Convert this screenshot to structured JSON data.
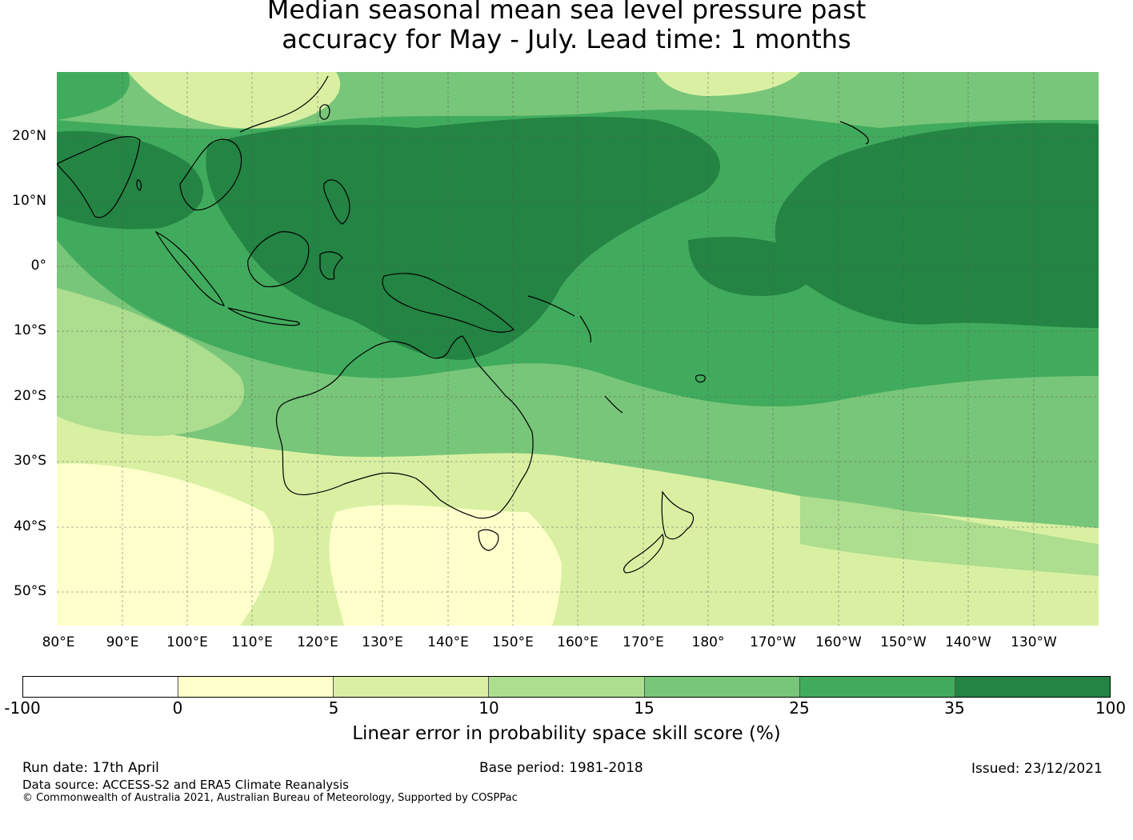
{
  "title": {
    "line1": "Median seasonal mean sea level pressure past",
    "line2": "accuracy for May - July. Lead time: 1 months"
  },
  "map": {
    "lat_labels": [
      "20°N",
      "10°N",
      "0°",
      "10°S",
      "20°S",
      "30°S",
      "40°S",
      "50°S"
    ],
    "lon_labels": [
      "80°E",
      "90°E",
      "100°E",
      "110°E",
      "120°E",
      "130°E",
      "140°E",
      "150°E",
      "160°E",
      "170°E",
      "180°",
      "170°W",
      "160°W",
      "150°W",
      "140°W",
      "130°W"
    ]
  },
  "colorbar": {
    "ticks": [
      "-100",
      "0",
      "5",
      "10",
      "15",
      "25",
      "35",
      "100"
    ],
    "colors": [
      "#ffffff",
      "#ffffcc",
      "#d9f0a3",
      "#addd8e",
      "#78c679",
      "#41ab5d",
      "#238443"
    ],
    "label": "Linear error in probability space skill score (%)"
  },
  "footer": {
    "run_date": "Run date: 17th April",
    "base_period": "Base period: 1981-2018",
    "issued": "Issued: 23/12/2021",
    "data_source": "Data source: ACCESS-S2 and ERA5 Climate Reanalysis",
    "copyright": "© Commonwealth of Australia 2021, Australian Bureau of Meteorology, Supported by COSPPac"
  }
}
